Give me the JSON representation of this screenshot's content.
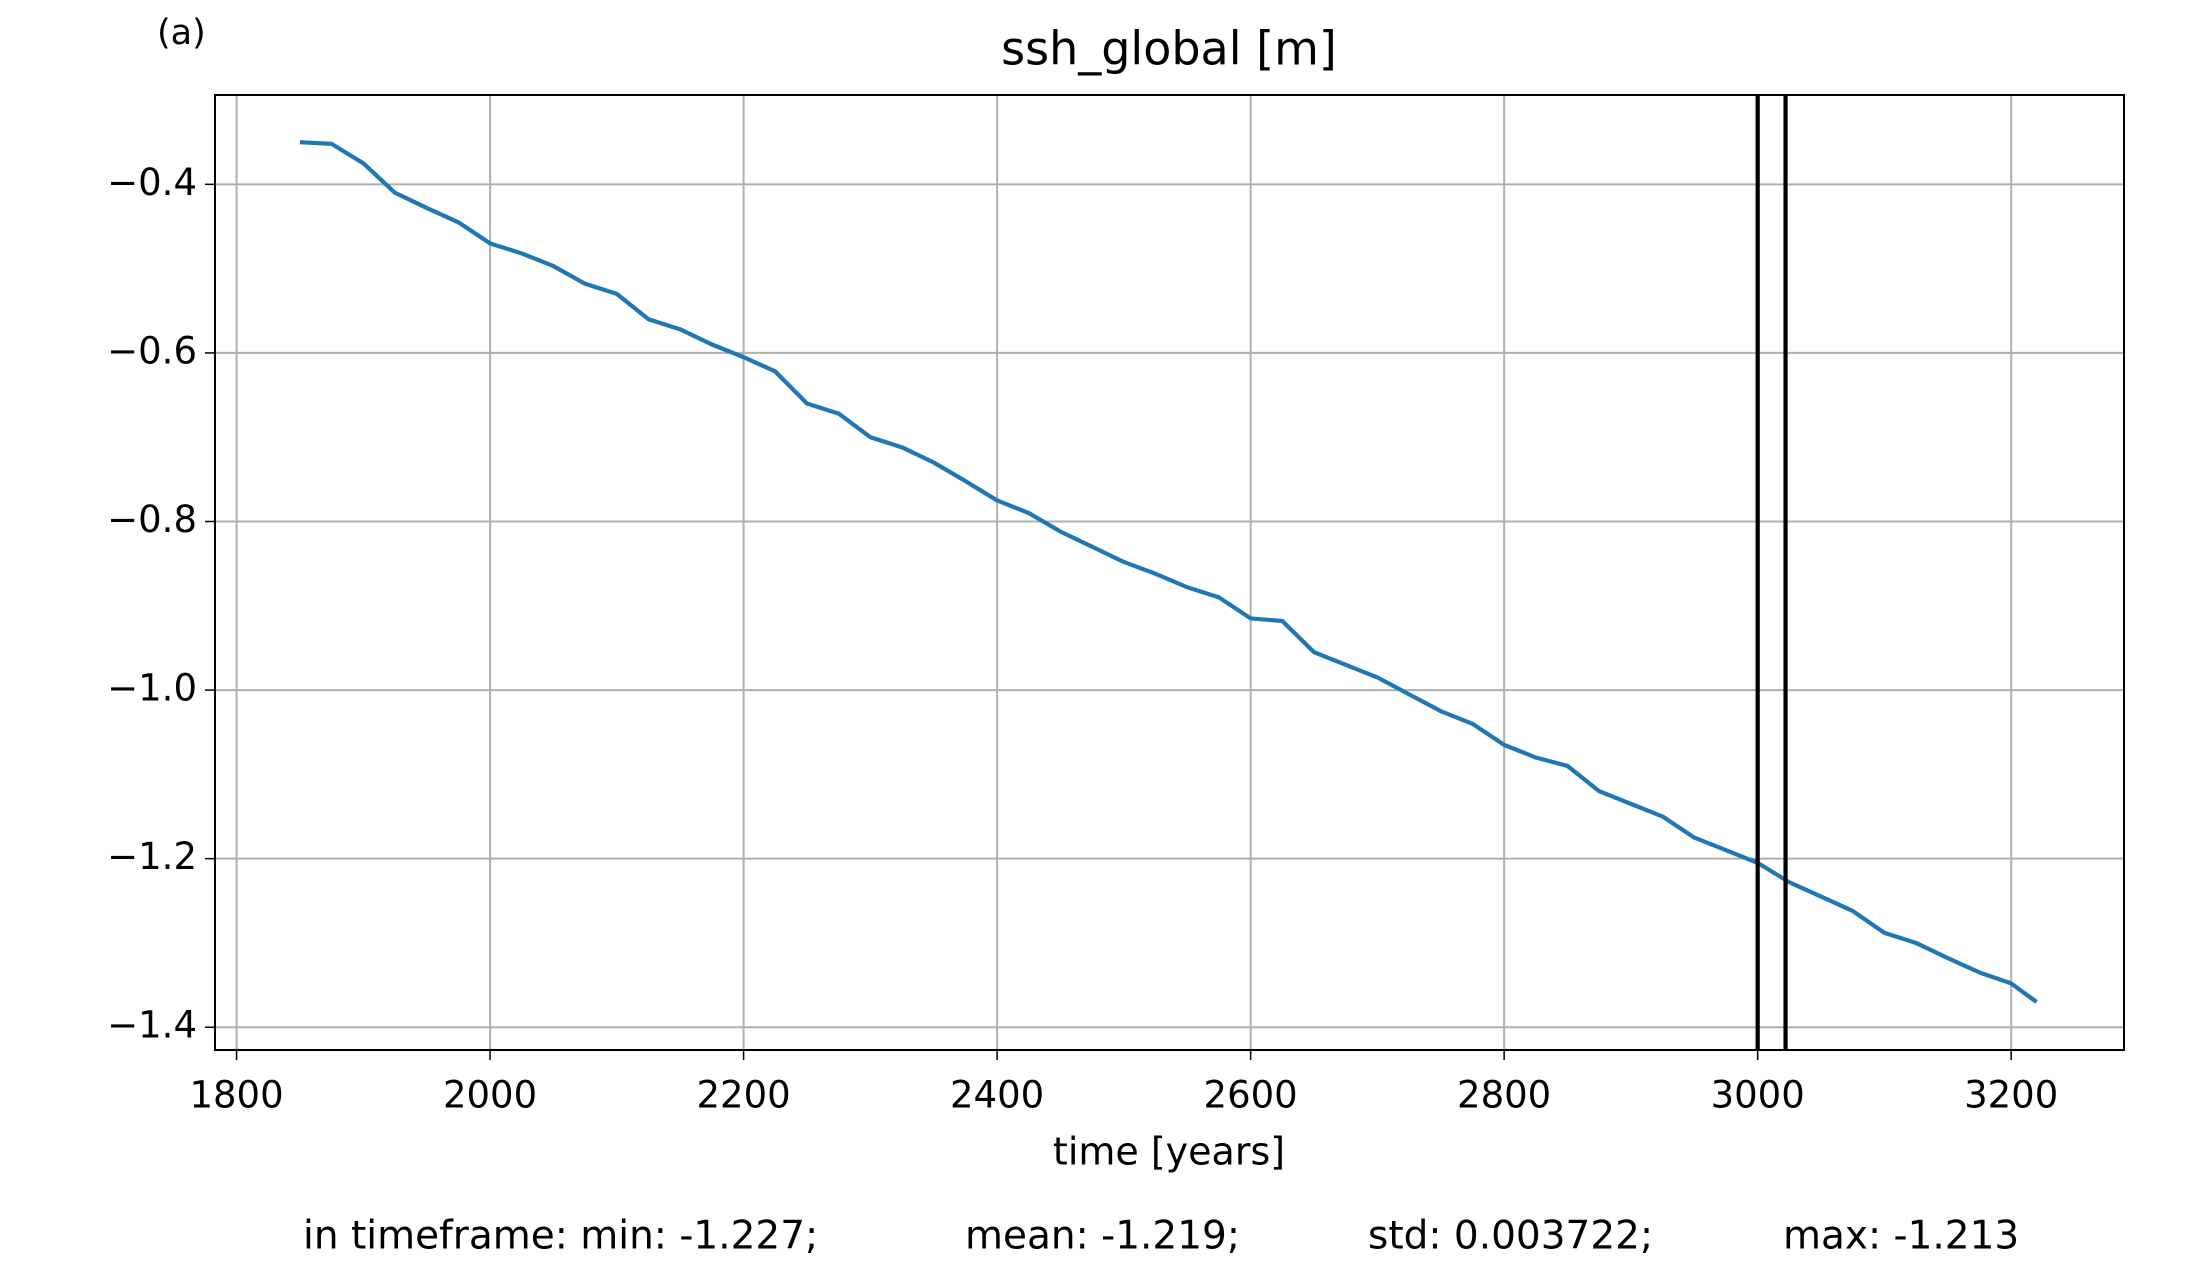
{
  "chart_data": {
    "type": "line",
    "annotation": "(a)",
    "title": "ssh_global [m]",
    "x_label": "time [years]",
    "stats": [
      "in timeframe: min: -1.227;",
      "mean: -1.219;",
      "std: 0.003722;",
      "max: -1.213"
    ],
    "x": [
      1850,
      1875,
      1900,
      1925,
      1950,
      1975,
      2000,
      2025,
      2050,
      2075,
      2100,
      2125,
      2150,
      2175,
      2200,
      2225,
      2250,
      2275,
      2300,
      2325,
      2350,
      2375,
      2400,
      2425,
      2450,
      2475,
      2500,
      2525,
      2550,
      2575,
      2600,
      2625,
      2650,
      2675,
      2700,
      2725,
      2750,
      2775,
      2800,
      2825,
      2850,
      2875,
      2900,
      2925,
      2950,
      2975,
      3000,
      3025,
      3050,
      3075,
      3100,
      3125,
      3150,
      3175,
      3200,
      3220
    ],
    "series": [
      {
        "name": "ssh_global",
        "color": "#1f77b4",
        "values": [
          -0.35,
          -0.352,
          -0.375,
          -0.41,
          -0.428,
          -0.445,
          -0.47,
          -0.482,
          -0.497,
          -0.518,
          -0.53,
          -0.56,
          -0.572,
          -0.59,
          -0.605,
          -0.622,
          -0.66,
          -0.672,
          -0.7,
          -0.712,
          -0.73,
          -0.752,
          -0.775,
          -0.79,
          -0.812,
          -0.83,
          -0.848,
          -0.862,
          -0.878,
          -0.89,
          -0.915,
          -0.918,
          -0.955,
          -0.97,
          -0.985,
          -1.005,
          -1.025,
          -1.04,
          -1.065,
          -1.08,
          -1.09,
          -1.12,
          -1.135,
          -1.15,
          -1.175,
          -1.19,
          -1.205,
          -1.228,
          -1.245,
          -1.262,
          -1.288,
          -1.3,
          -1.318,
          -1.335,
          -1.348,
          -1.37
        ]
      }
    ],
    "vlines": [
      3000,
      3022
    ],
    "vline_color": "#000000",
    "xlim": [
      1783,
      3289
    ],
    "ylim": [
      -1.427,
      -0.294
    ],
    "xticks": [
      1800,
      2000,
      2200,
      2400,
      2600,
      2800,
      3000,
      3200
    ],
    "yticks": [
      {
        "value": -0.4,
        "label": "−0.4"
      },
      {
        "value": -0.6,
        "label": "−0.6"
      },
      {
        "value": -0.8,
        "label": "−0.8"
      },
      {
        "value": -1.0,
        "label": "−1.0"
      },
      {
        "value": -1.2,
        "label": "−1.2"
      },
      {
        "value": -1.4,
        "label": "−1.4"
      }
    ],
    "grid": true
  }
}
